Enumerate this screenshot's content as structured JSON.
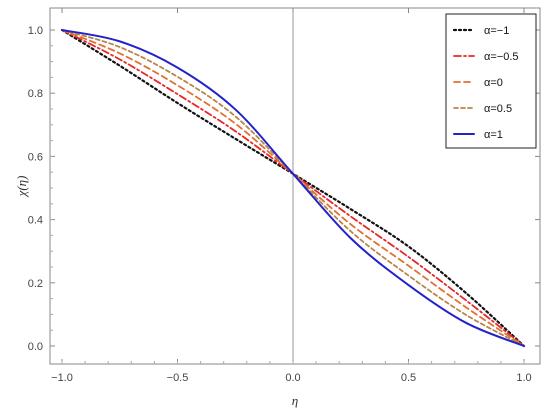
{
  "chart_data": {
    "type": "line",
    "title": "",
    "xlabel": "η",
    "ylabel": "χ(η)",
    "xlim": [
      -1.0,
      1.0
    ],
    "ylim": [
      -0.03,
      1.03
    ],
    "x_ticks": [
      -1.0,
      -0.5,
      0.0,
      0.5,
      1.0
    ],
    "x_tick_labels": [
      "−1.0",
      "−0.5",
      "0.0",
      "0.5",
      "1.0"
    ],
    "y_ticks": [
      0.0,
      0.2,
      0.4,
      0.6,
      0.8,
      1.0
    ],
    "y_tick_labels": [
      "0.0",
      "0.2",
      "0.4",
      "0.6",
      "0.8",
      "1.0"
    ],
    "grid": false,
    "vertical_reference_line_x": 0.0,
    "legend_position": "top-right",
    "x": [
      -1.0,
      -0.75,
      -0.5,
      -0.25,
      0.0,
      0.25,
      0.5,
      0.75,
      1.0
    ],
    "series": [
      {
        "name": "α=−1",
        "color": "#111111",
        "dash": "dotted",
        "values": [
          1.0,
          0.887,
          0.769,
          0.656,
          0.545,
          0.433,
          0.315,
          0.167,
          0.0
        ]
      },
      {
        "name": "α=−0.5",
        "color": "#e8272a",
        "dash": "dash-dot",
        "values": [
          1.0,
          0.907,
          0.797,
          0.68,
          0.545,
          0.41,
          0.282,
          0.144,
          0.0
        ]
      },
      {
        "name": "α=0",
        "color": "#e07030",
        "dash": "dashed",
        "values": [
          1.0,
          0.926,
          0.825,
          0.704,
          0.545,
          0.385,
          0.254,
          0.122,
          0.0
        ]
      },
      {
        "name": "α=0.5",
        "color": "#b8864c",
        "dash": "short-dashed",
        "values": [
          1.0,
          0.946,
          0.852,
          0.727,
          0.545,
          0.363,
          0.223,
          0.098,
          0.0
        ]
      },
      {
        "name": "α=1",
        "color": "#2222cc",
        "dash": "solid",
        "values": [
          1.0,
          0.964,
          0.881,
          0.749,
          0.545,
          0.341,
          0.193,
          0.073,
          0.0
        ]
      }
    ]
  }
}
